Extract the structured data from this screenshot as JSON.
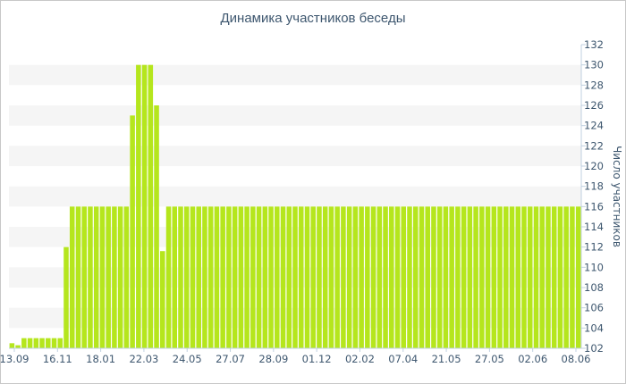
{
  "chart_data": {
    "type": "bar",
    "title": "Динамика участников беседы",
    "ylabel": "Число участников",
    "ylim": [
      102,
      132
    ],
    "y_ticks": [
      102,
      104,
      106,
      108,
      110,
      112,
      114,
      116,
      118,
      120,
      122,
      124,
      126,
      128,
      130,
      132
    ],
    "x_tick_labels": [
      "13.09",
      "16.11",
      "18.01",
      "22.03",
      "24.05",
      "27.07",
      "28.09",
      "01.12",
      "02.02",
      "07.04",
      "21.05",
      "27.05",
      "02.06",
      "08.06"
    ],
    "y_axis_position": "right",
    "grid": "alternating horizontal bands",
    "bar_color": "#b5e61d",
    "values": [
      102.5,
      102.3,
      103,
      103,
      103,
      103,
      103,
      103,
      103,
      112,
      116,
      116,
      116,
      116,
      116,
      116,
      116,
      116,
      116,
      116,
      125,
      130,
      130,
      130,
      126,
      111.6,
      116,
      116,
      116,
      116,
      116,
      116,
      116,
      116,
      116,
      116,
      116,
      116,
      116,
      116,
      116,
      116,
      116,
      116,
      116,
      116,
      116,
      116,
      116,
      116,
      116,
      116,
      116,
      116,
      116,
      116,
      116,
      116,
      116,
      116,
      116,
      116,
      116,
      116,
      116,
      116,
      116,
      116,
      116,
      116,
      116,
      116,
      116,
      116,
      116,
      116,
      116,
      116,
      116,
      116,
      116,
      116,
      116,
      116,
      116,
      116,
      116,
      116,
      116,
      116,
      116,
      116,
      116,
      116,
      116
    ]
  }
}
